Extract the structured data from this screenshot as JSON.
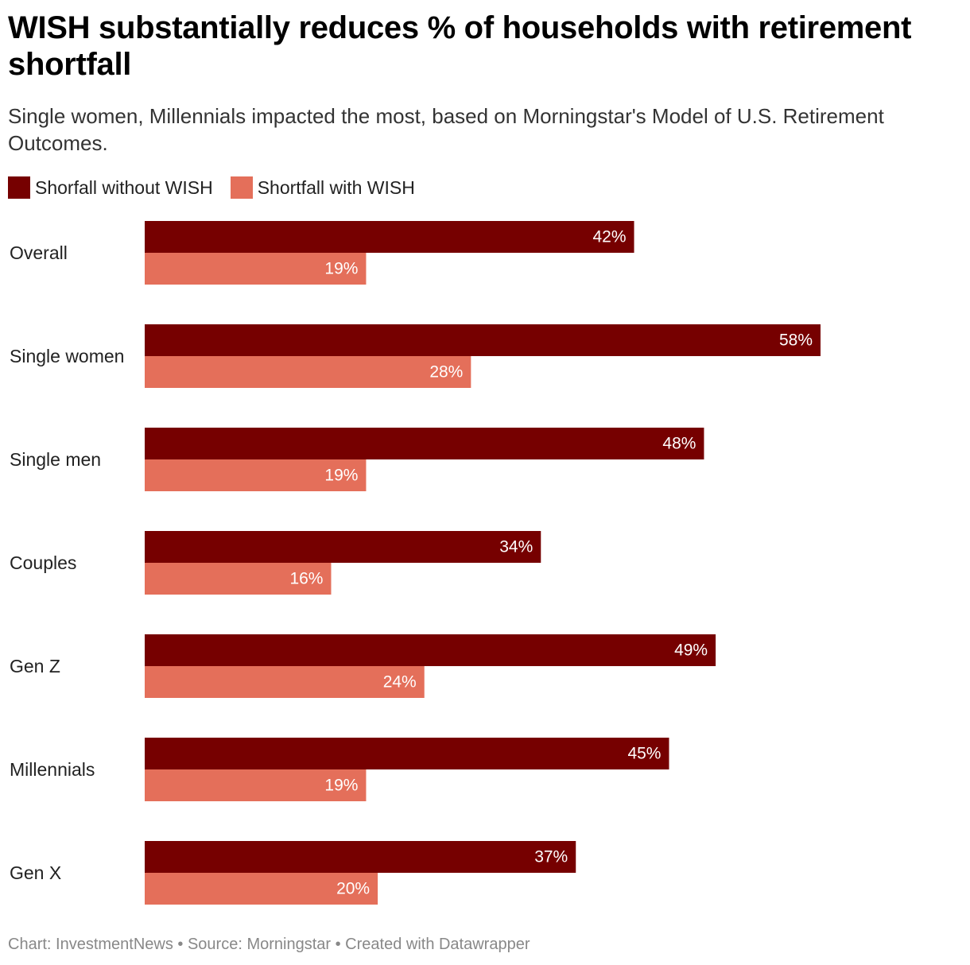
{
  "title": "WISH substantially reduces % of households with retirement shortfall",
  "subtitle": "Single women, Millennials impacted the most, based on Morningstar's Model of U.S. Retirement Outcomes.",
  "footer": "Chart: InvestmentNews • Source: Morningstar • Created with Datawrapper",
  "colors": {
    "without": "#760000",
    "with": "#e46f5a"
  },
  "chart_data": {
    "type": "bar",
    "orientation": "horizontal",
    "title": "WISH substantially reduces % of households with retirement shortfall",
    "subtitle": "Single women, Millennials impacted the most, based on Morningstar's Model of U.S. Retirement Outcomes.",
    "xlabel": "",
    "ylabel": "",
    "xlim": [
      0,
      60
    ],
    "grid": false,
    "legend_position": "top-left",
    "value_suffix": "%",
    "categories": [
      "Overall",
      "Single women",
      "Single men",
      "Couples",
      "Gen Z",
      "Millennials",
      "Gen X"
    ],
    "series": [
      {
        "name": "Shorfall without WISH",
        "values": [
          42,
          58,
          48,
          34,
          49,
          45,
          37
        ]
      },
      {
        "name": "Shortfall with WISH",
        "values": [
          19,
          28,
          19,
          16,
          24,
          19,
          20
        ]
      }
    ]
  }
}
